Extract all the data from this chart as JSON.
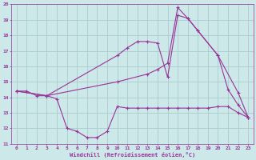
{
  "xlabel": "Windchill (Refroidissement éolien,°C)",
  "xlim": [
    -0.5,
    23.5
  ],
  "ylim": [
    11,
    20
  ],
  "xticks": [
    0,
    1,
    2,
    3,
    4,
    5,
    6,
    7,
    8,
    9,
    10,
    11,
    12,
    13,
    14,
    15,
    16,
    17,
    18,
    19,
    20,
    21,
    22,
    23
  ],
  "yticks": [
    11,
    12,
    13,
    14,
    15,
    16,
    17,
    18,
    19,
    20
  ],
  "bg_color": "#cce8e8",
  "grid_color": "#aacccc",
  "line_color": "#993399",
  "line1_x": [
    0,
    1,
    2,
    3,
    4,
    5,
    6,
    7,
    8,
    9,
    10,
    11,
    12,
    13,
    14,
    15,
    16,
    17,
    18,
    19,
    20,
    21,
    22,
    23
  ],
  "line1_y": [
    14.4,
    14.4,
    14.1,
    14.1,
    13.9,
    12.0,
    11.8,
    11.4,
    11.4,
    11.8,
    13.4,
    13.3,
    13.3,
    13.3,
    13.3,
    13.3,
    13.3,
    13.3,
    13.3,
    13.3,
    13.4,
    13.4,
    13.0,
    12.7
  ],
  "line2_x": [
    0,
    3,
    10,
    11,
    12,
    13,
    14,
    15,
    16,
    17,
    18,
    20,
    21,
    22,
    23
  ],
  "line2_y": [
    14.4,
    14.1,
    16.7,
    17.2,
    17.6,
    17.6,
    17.5,
    15.3,
    19.3,
    19.1,
    18.3,
    16.7,
    14.5,
    13.5,
    12.7
  ],
  "line3_x": [
    0,
    3,
    10,
    13,
    14,
    15,
    16,
    17,
    18,
    20,
    22,
    23
  ],
  "line3_y": [
    14.4,
    14.1,
    15.0,
    15.5,
    15.8,
    16.2,
    19.8,
    19.1,
    18.3,
    16.7,
    14.3,
    12.7
  ]
}
